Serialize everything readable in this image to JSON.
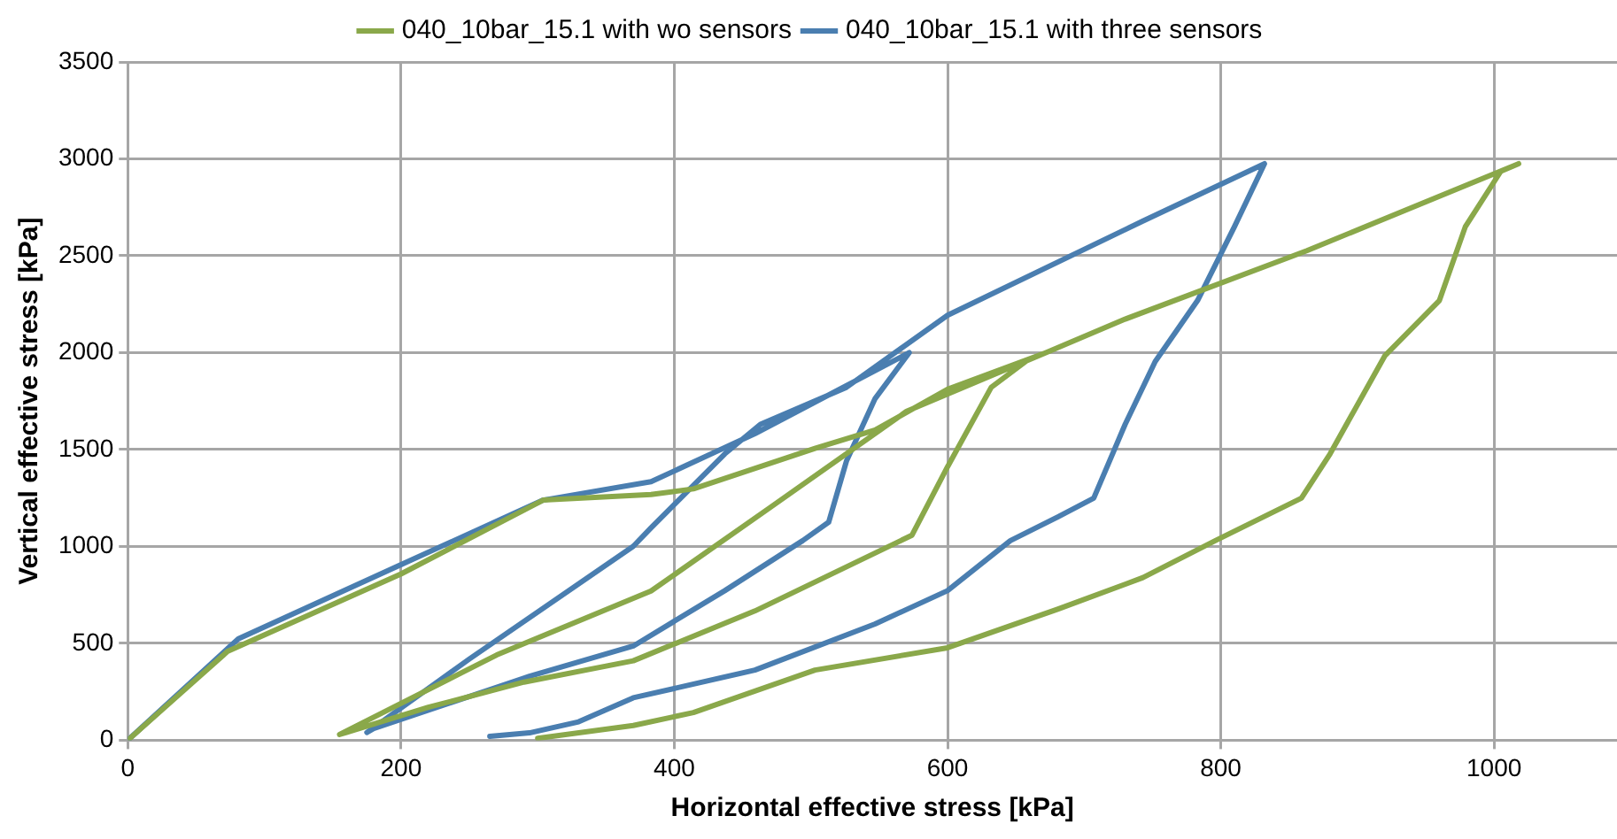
{
  "chart_data": {
    "type": "line",
    "xlabel": "Horizontal effective stress [kPa]",
    "ylabel": "Vertical effective stress [kPa]",
    "xlim": [
      0,
      1090
    ],
    "xticks": [
      0,
      200,
      400,
      600,
      800,
      1000
    ],
    "ylim": [
      0,
      3500
    ],
    "yticks": [
      0,
      500,
      1000,
      1500,
      2000,
      2500,
      3000,
      3500
    ],
    "grid": true,
    "legend": "top",
    "marker": "none",
    "line_style": "solid",
    "series": [
      {
        "name": "040_10bar_15.1 with wo sensors",
        "color": "#8aa84a",
        "x": [
          0,
          73,
          200,
          304,
          383,
          414,
          503,
          547,
          600,
          672,
          659,
          632,
          600,
          574,
          459,
          370,
          290,
          220,
          160,
          155,
          270,
          383,
          470,
          570,
          672,
          730,
          863,
          1018,
          1005,
          979,
          960,
          920,
          880,
          859,
          796,
          743,
          681,
          600,
          503,
          414,
          370,
          300
        ],
        "values": [
          0,
          458,
          858,
          1239,
          1268,
          1297,
          1506,
          1601,
          1811,
          2000,
          1964,
          1821,
          1411,
          1058,
          667,
          410,
          300,
          170,
          40,
          30,
          440,
          770,
          1200,
          1697,
          2000,
          2173,
          2526,
          2975,
          2936,
          2650,
          2269,
          1983,
          1478,
          1249,
          1030,
          839,
          677,
          477,
          362,
          143,
          76,
          10
        ]
      },
      {
        "name": "040_10bar_15.1 with three sensors",
        "color": "#4a7eb0",
        "x": [
          0,
          81,
          200,
          304,
          383,
          459,
          572,
          547,
          526,
          513,
          494,
          437,
          370,
          294,
          180,
          175,
          250,
          370,
          383,
          437,
          463,
          526,
          600,
          743,
          832,
          810,
          783,
          752,
          730,
          707,
          681,
          646,
          600,
          547,
          459,
          370,
          330,
          294,
          265
        ],
        "values": [
          0,
          524,
          906,
          1239,
          1334,
          1582,
          2000,
          1763,
          1440,
          1125,
          1030,
          772,
          486,
          330,
          60,
          40,
          419,
          1001,
          1096,
          1478,
          1630,
          1821,
          2193,
          2679,
          2975,
          2650,
          2269,
          1954,
          1630,
          1249,
          1153,
          1030,
          772,
          600,
          362,
          219,
          95,
          38,
          20
        ]
      }
    ]
  }
}
